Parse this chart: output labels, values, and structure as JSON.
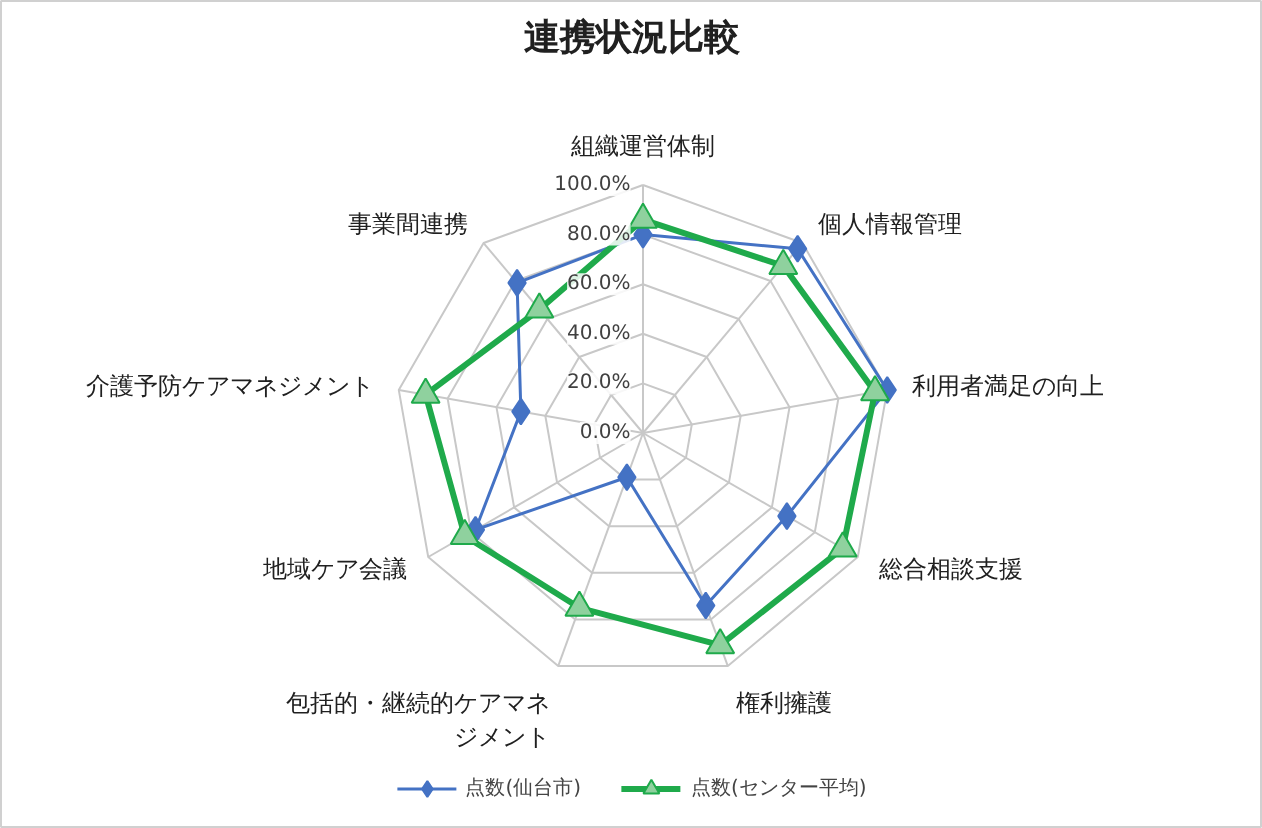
{
  "chart_data": {
    "type": "radar",
    "title": "連携状況比較",
    "categories": [
      "組織運営体制",
      "個人情報管理",
      "利用者満足の向上",
      "総合相談支援",
      "権利擁護",
      "包括的・継続的ケアマネジメント",
      "地域ケア会議",
      "介護予防ケアマネジメント",
      "事業間連携"
    ],
    "series": [
      {
        "name": "点数(仙台市)",
        "color": "#4472c4",
        "marker": "diamond",
        "values": [
          80,
          97,
          100,
          67,
          74,
          19,
          78,
          50,
          79
        ]
      },
      {
        "name": "点数(センター平均)",
        "color": "#1faa4b",
        "marker": "triangle",
        "values": [
          86,
          88,
          95,
          93,
          91,
          75,
          83,
          89,
          65
        ]
      }
    ],
    "ylim": [
      0,
      100
    ],
    "yticks": [
      {
        "value": 0,
        "label": "0.0%"
      },
      {
        "value": 20,
        "label": "20.0%"
      },
      {
        "value": 40,
        "label": "40.0%"
      },
      {
        "value": 60,
        "label": "60.0%"
      },
      {
        "value": 80,
        "label": "80.0%"
      },
      {
        "value": 100,
        "label": "100.0%"
      }
    ],
    "grid": true,
    "legend": "bottom"
  }
}
